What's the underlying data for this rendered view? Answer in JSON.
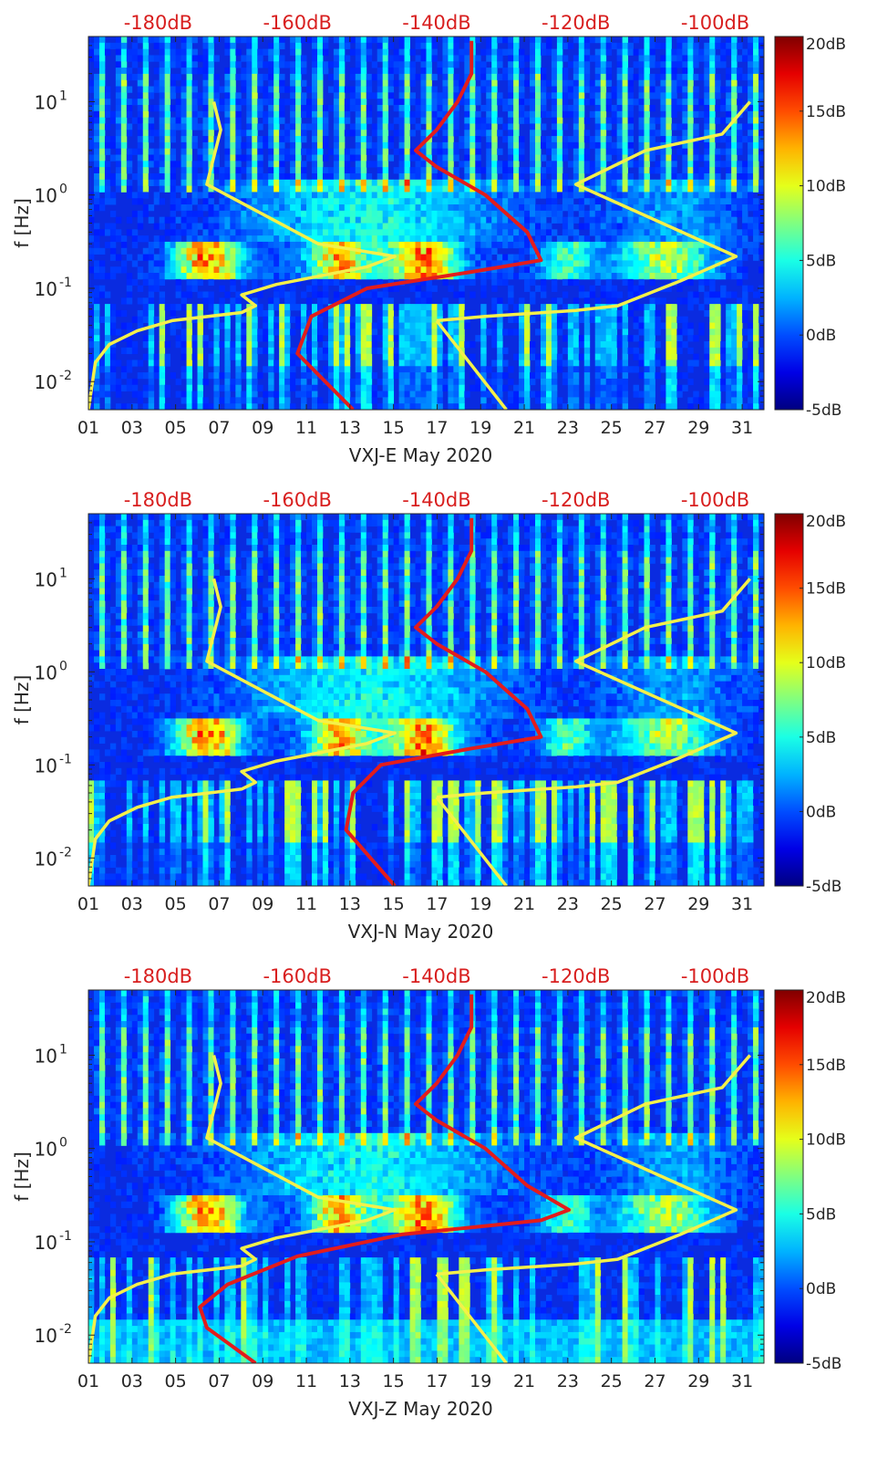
{
  "colors": {
    "power_axis": "#d81f1f",
    "red_curve": "#e31c1c",
    "yellow_curve": "#f4f04a",
    "axis": "#262626"
  },
  "chart_data": [
    {
      "type": "heatmap",
      "xlabel": "VXJ-E May 2020",
      "ylabel": "f [Hz]",
      "x_ticks": [
        "01",
        "03",
        "05",
        "07",
        "09",
        "11",
        "13",
        "15",
        "17",
        "19",
        "21",
        "23",
        "25",
        "27",
        "29",
        "31"
      ],
      "x_range_days": [
        1,
        32
      ],
      "y_scale": "log",
      "y_range_hz": [
        0.005,
        50
      ],
      "y_ticks": [
        {
          "value": 0.01,
          "label": "10^-2"
        },
        {
          "value": 0.1,
          "label": "10^-1"
        },
        {
          "value": 1,
          "label": "10^0"
        },
        {
          "value": 10,
          "label": "10^1"
        }
      ],
      "top_axis_labels": [
        "-180dB",
        "-160dB",
        "-140dB",
        "-120dB",
        "-100dB"
      ],
      "top_axis_range_db": [
        -190,
        -93
      ],
      "colorbar": {
        "colormap": "jet",
        "range_db": [
          -5,
          20
        ],
        "tick_labels": [
          "20dB",
          "15dB",
          "10dB",
          "5dB",
          "0dB",
          "-5dB"
        ],
        "tick_values": [
          20,
          15,
          10,
          5,
          0,
          -5
        ]
      },
      "yellow_low_noise": [
        {
          "x": -190,
          "f": 0.005
        },
        {
          "x": -189,
          "f": 0.016
        },
        {
          "x": -187,
          "f": 0.025
        },
        {
          "x": -183,
          "f": 0.035
        },
        {
          "x": -178,
          "f": 0.045
        },
        {
          "x": -168,
          "f": 0.055
        },
        {
          "x": -166,
          "f": 0.065
        },
        {
          "x": -168,
          "f": 0.085
        },
        {
          "x": -163,
          "f": 0.11
        },
        {
          "x": -150,
          "f": 0.17
        },
        {
          "x": -146,
          "f": 0.22
        },
        {
          "x": -157,
          "f": 0.3
        },
        {
          "x": -173,
          "f": 1.3
        },
        {
          "x": -171,
          "f": 5
        },
        {
          "x": -172,
          "f": 10
        }
      ],
      "yellow_high_noise": [
        {
          "x": -140,
          "f": 0.045
        },
        {
          "x": -133,
          "f": 0.05
        },
        {
          "x": -120,
          "f": 0.058
        },
        {
          "x": -114,
          "f": 0.065
        },
        {
          "x": -105,
          "f": 0.12
        },
        {
          "x": -97,
          "f": 0.22
        },
        {
          "x": -120,
          "f": 1.3
        },
        {
          "x": -110,
          "f": 3
        },
        {
          "x": -99,
          "f": 4.5
        },
        {
          "x": -95,
          "f": 10
        }
      ],
      "yellow_diag": [
        {
          "x": -140,
          "f": 0.045
        },
        {
          "x": -130,
          "f": 0.005
        }
      ],
      "red_median": [
        {
          "x": -152,
          "f": 0.005
        },
        {
          "x": -160,
          "f": 0.02
        },
        {
          "x": -158,
          "f": 0.05
        },
        {
          "x": -150,
          "f": 0.1
        },
        {
          "x": -135,
          "f": 0.15
        },
        {
          "x": -125,
          "f": 0.2
        },
        {
          "x": -127,
          "f": 0.4
        },
        {
          "x": -133,
          "f": 1
        },
        {
          "x": -140,
          "f": 2
        },
        {
          "x": -143,
          "f": 3
        },
        {
          "x": -140,
          "f": 5
        },
        {
          "x": -137,
          "f": 10
        },
        {
          "x": -135,
          "f": 20
        },
        {
          "x": -135,
          "f": 45
        }
      ]
    },
    {
      "type": "heatmap",
      "xlabel": "VXJ-N May 2020",
      "ylabel": "f [Hz]",
      "x_ticks": [
        "01",
        "03",
        "05",
        "07",
        "09",
        "11",
        "13",
        "15",
        "17",
        "19",
        "21",
        "23",
        "25",
        "27",
        "29",
        "31"
      ],
      "x_range_days": [
        1,
        32
      ],
      "y_scale": "log",
      "y_range_hz": [
        0.005,
        50
      ],
      "y_ticks": [
        {
          "value": 0.01,
          "label": "10^-2"
        },
        {
          "value": 0.1,
          "label": "10^-1"
        },
        {
          "value": 1,
          "label": "10^0"
        },
        {
          "value": 10,
          "label": "10^1"
        }
      ],
      "top_axis_labels": [
        "-180dB",
        "-160dB",
        "-140dB",
        "-120dB",
        "-100dB"
      ],
      "top_axis_range_db": [
        -190,
        -93
      ],
      "colorbar": {
        "colormap": "jet",
        "range_db": [
          -5,
          20
        ],
        "tick_labels": [
          "20dB",
          "15dB",
          "10dB",
          "5dB",
          "0dB",
          "-5dB"
        ],
        "tick_values": [
          20,
          15,
          10,
          5,
          0,
          -5
        ]
      },
      "yellow_low_noise": [
        {
          "x": -190,
          "f": 0.005
        },
        {
          "x": -189,
          "f": 0.016
        },
        {
          "x": -187,
          "f": 0.025
        },
        {
          "x": -183,
          "f": 0.035
        },
        {
          "x": -178,
          "f": 0.045
        },
        {
          "x": -168,
          "f": 0.055
        },
        {
          "x": -166,
          "f": 0.065
        },
        {
          "x": -168,
          "f": 0.085
        },
        {
          "x": -163,
          "f": 0.11
        },
        {
          "x": -150,
          "f": 0.17
        },
        {
          "x": -146,
          "f": 0.22
        },
        {
          "x": -157,
          "f": 0.3
        },
        {
          "x": -173,
          "f": 1.3
        },
        {
          "x": -171,
          "f": 5
        },
        {
          "x": -172,
          "f": 10
        }
      ],
      "yellow_high_noise": [
        {
          "x": -140,
          "f": 0.045
        },
        {
          "x": -133,
          "f": 0.05
        },
        {
          "x": -120,
          "f": 0.058
        },
        {
          "x": -114,
          "f": 0.065
        },
        {
          "x": -105,
          "f": 0.12
        },
        {
          "x": -97,
          "f": 0.22
        },
        {
          "x": -120,
          "f": 1.3
        },
        {
          "x": -110,
          "f": 3
        },
        {
          "x": -99,
          "f": 4.5
        },
        {
          "x": -95,
          "f": 10
        }
      ],
      "yellow_diag": [
        {
          "x": -140,
          "f": 0.045
        },
        {
          "x": -130,
          "f": 0.005
        }
      ],
      "red_median": [
        {
          "x": -146,
          "f": 0.005
        },
        {
          "x": -153,
          "f": 0.02
        },
        {
          "x": -152,
          "f": 0.05
        },
        {
          "x": -148,
          "f": 0.1
        },
        {
          "x": -135,
          "f": 0.15
        },
        {
          "x": -125,
          "f": 0.2
        },
        {
          "x": -127,
          "f": 0.4
        },
        {
          "x": -133,
          "f": 1
        },
        {
          "x": -140,
          "f": 2
        },
        {
          "x": -143,
          "f": 3
        },
        {
          "x": -140,
          "f": 5
        },
        {
          "x": -137,
          "f": 10
        },
        {
          "x": -135,
          "f": 20
        },
        {
          "x": -135,
          "f": 45
        }
      ]
    },
    {
      "type": "heatmap",
      "xlabel": "VXJ-Z May 2020",
      "ylabel": "f [Hz]",
      "x_ticks": [
        "01",
        "03",
        "05",
        "07",
        "09",
        "11",
        "13",
        "15",
        "17",
        "19",
        "21",
        "23",
        "25",
        "27",
        "29",
        "31"
      ],
      "x_range_days": [
        1,
        32
      ],
      "y_scale": "log",
      "y_range_hz": [
        0.005,
        50
      ],
      "y_ticks": [
        {
          "value": 0.01,
          "label": "10^-2"
        },
        {
          "value": 0.1,
          "label": "10^-1"
        },
        {
          "value": 1,
          "label": "10^0"
        },
        {
          "value": 10,
          "label": "10^1"
        }
      ],
      "top_axis_labels": [
        "-180dB",
        "-160dB",
        "-140dB",
        "-120dB",
        "-100dB"
      ],
      "top_axis_range_db": [
        -190,
        -93
      ],
      "colorbar": {
        "colormap": "jet",
        "range_db": [
          -5,
          20
        ],
        "tick_labels": [
          "20dB",
          "15dB",
          "10dB",
          "5dB",
          "0dB",
          "-5dB"
        ],
        "tick_values": [
          20,
          15,
          10,
          5,
          0,
          -5
        ]
      },
      "yellow_low_noise": [
        {
          "x": -190,
          "f": 0.005
        },
        {
          "x": -189,
          "f": 0.016
        },
        {
          "x": -187,
          "f": 0.025
        },
        {
          "x": -183,
          "f": 0.035
        },
        {
          "x": -178,
          "f": 0.045
        },
        {
          "x": -168,
          "f": 0.055
        },
        {
          "x": -166,
          "f": 0.065
        },
        {
          "x": -168,
          "f": 0.085
        },
        {
          "x": -163,
          "f": 0.11
        },
        {
          "x": -150,
          "f": 0.17
        },
        {
          "x": -146,
          "f": 0.22
        },
        {
          "x": -157,
          "f": 0.3
        },
        {
          "x": -173,
          "f": 1.3
        },
        {
          "x": -171,
          "f": 5
        },
        {
          "x": -172,
          "f": 10
        }
      ],
      "yellow_high_noise": [
        {
          "x": -140,
          "f": 0.045
        },
        {
          "x": -133,
          "f": 0.05
        },
        {
          "x": -120,
          "f": 0.058
        },
        {
          "x": -114,
          "f": 0.065
        },
        {
          "x": -105,
          "f": 0.12
        },
        {
          "x": -97,
          "f": 0.22
        },
        {
          "x": -120,
          "f": 1.3
        },
        {
          "x": -110,
          "f": 3
        },
        {
          "x": -99,
          "f": 4.5
        },
        {
          "x": -95,
          "f": 10
        }
      ],
      "yellow_diag": [
        {
          "x": -140,
          "f": 0.045
        },
        {
          "x": -130,
          "f": 0.005
        }
      ],
      "red_median": [
        {
          "x": -166,
          "f": 0.005
        },
        {
          "x": -173,
          "f": 0.012
        },
        {
          "x": -174,
          "f": 0.02
        },
        {
          "x": -170,
          "f": 0.035
        },
        {
          "x": -160,
          "f": 0.07
        },
        {
          "x": -145,
          "f": 0.12
        },
        {
          "x": -125,
          "f": 0.17
        },
        {
          "x": -121,
          "f": 0.22
        },
        {
          "x": -127,
          "f": 0.4
        },
        {
          "x": -133,
          "f": 1
        },
        {
          "x": -140,
          "f": 2
        },
        {
          "x": -143,
          "f": 3
        },
        {
          "x": -140,
          "f": 5
        },
        {
          "x": -137,
          "f": 10
        },
        {
          "x": -135,
          "f": 20
        },
        {
          "x": -135,
          "f": 45
        }
      ]
    }
  ]
}
